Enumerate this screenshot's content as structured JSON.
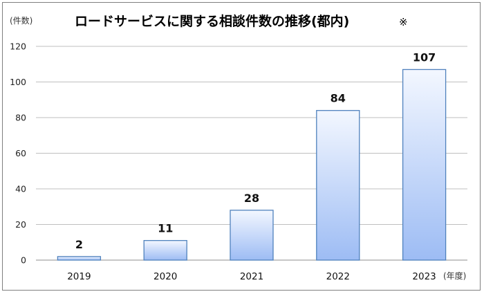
{
  "chart_data": {
    "type": "bar",
    "title": "ロードサービスに関する相談件数の推移(都内)",
    "title_mark": "※",
    "ylabel": "(件数)",
    "xlabel": "(年度)",
    "categories": [
      "2019",
      "2020",
      "2021",
      "2022",
      "2023"
    ],
    "values": [
      2,
      11,
      28,
      84,
      107
    ],
    "ylim": [
      0,
      120
    ],
    "yticks": [
      0,
      20,
      40,
      60,
      80,
      100,
      120
    ],
    "grid": true,
    "legend": "none",
    "bar_gradient": [
      "#f3f7ff",
      "#9dbcf4"
    ],
    "bar_stroke": "#4f81bd"
  }
}
